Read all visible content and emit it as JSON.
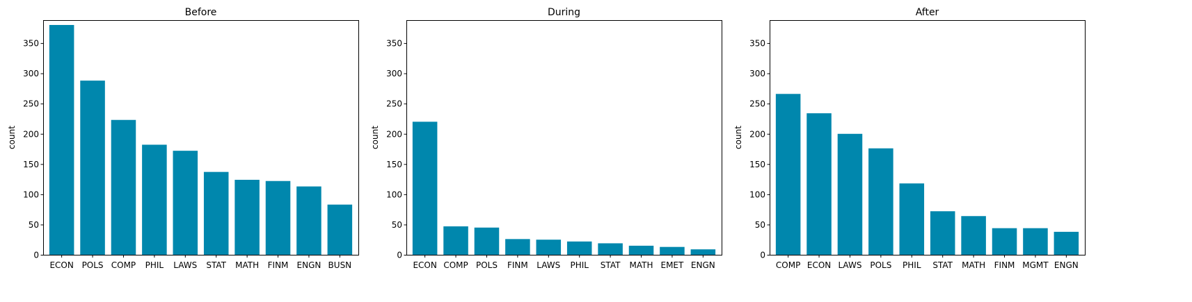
{
  "chart_data": [
    {
      "type": "bar",
      "title": "Before",
      "xlabel": "",
      "ylabel": "count",
      "ylim": [
        0,
        388
      ],
      "yticks": [
        0,
        50,
        100,
        150,
        200,
        250,
        300,
        350
      ],
      "categories": [
        "ECON",
        "POLS",
        "COMP",
        "PHIL",
        "LAWS",
        "STAT",
        "MATH",
        "FINM",
        "ENGN",
        "BUSN"
      ],
      "values": [
        380,
        288,
        223,
        182,
        172,
        137,
        124,
        122,
        113,
        83
      ],
      "bar_color": "#0087ad",
      "grid": false
    },
    {
      "type": "bar",
      "title": "During",
      "xlabel": "",
      "ylabel": "count",
      "ylim": [
        0,
        388
      ],
      "yticks": [
        0,
        50,
        100,
        150,
        200,
        250,
        300,
        350
      ],
      "categories": [
        "ECON",
        "COMP",
        "POLS",
        "FINM",
        "LAWS",
        "PHIL",
        "STAT",
        "MATH",
        "EMET",
        "ENGN"
      ],
      "values": [
        220,
        47,
        45,
        26,
        25,
        22,
        19,
        15,
        13,
        9
      ],
      "bar_color": "#0087ad",
      "grid": false
    },
    {
      "type": "bar",
      "title": "After",
      "xlabel": "",
      "ylabel": "count",
      "ylim": [
        0,
        388
      ],
      "yticks": [
        0,
        50,
        100,
        150,
        200,
        250,
        300,
        350
      ],
      "categories": [
        "COMP",
        "ECON",
        "LAWS",
        "POLS",
        "PHIL",
        "STAT",
        "MATH",
        "FINM",
        "MGMT",
        "ENGN"
      ],
      "values": [
        266,
        234,
        200,
        176,
        118,
        72,
        64,
        44,
        44,
        38
      ],
      "bar_color": "#0087ad",
      "grid": false
    }
  ]
}
